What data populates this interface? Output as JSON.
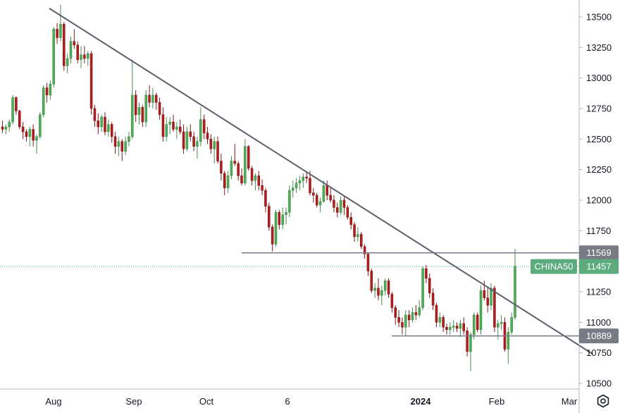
{
  "chart_data": {
    "type": "candlestick",
    "symbol": "CHINA50",
    "last_price": "11457",
    "y_axis": {
      "range": [
        10500,
        13600
      ],
      "ticks": [
        10500,
        10750,
        11000,
        11250,
        11500,
        11750,
        12000,
        12250,
        12500,
        12750,
        13000,
        13250,
        13500
      ]
    },
    "x_axis": {
      "ticks": [
        {
          "label": "Aug",
          "bold": false
        },
        {
          "label": "Sep",
          "bold": false
        },
        {
          "label": "Oct",
          "bold": false
        },
        {
          "label": "6",
          "bold": false
        },
        {
          "label": "2024",
          "bold": true
        },
        {
          "label": "Feb",
          "bold": false
        },
        {
          "label": "Mar",
          "bold": false
        }
      ]
    },
    "levels": [
      {
        "label": "11569",
        "value": 11569
      },
      {
        "label": "10889",
        "value": 10889
      }
    ],
    "trendline": {
      "start": {
        "date": "2023-07-27",
        "value": 13570
      },
      "end": {
        "date": "2024-02-29",
        "value": 10740
      }
    },
    "candles": [
      [
        12600,
        12650,
        12550,
        12580
      ],
      [
        12580,
        12620,
        12540,
        12600
      ],
      [
        12600,
        12660,
        12560,
        12640
      ],
      [
        12640,
        12860,
        12620,
        12840
      ],
      [
        12840,
        12850,
        12700,
        12730
      ],
      [
        12730,
        12740,
        12580,
        12600
      ],
      [
        12600,
        12640,
        12500,
        12560
      ],
      [
        12560,
        12580,
        12480,
        12520
      ],
      [
        12520,
        12600,
        12440,
        12580
      ],
      [
        12580,
        12620,
        12440,
        12490
      ],
      [
        12490,
        12540,
        12380,
        12520
      ],
      [
        12520,
        12720,
        12500,
        12700
      ],
      [
        12700,
        12940,
        12680,
        12920
      ],
      [
        12920,
        12960,
        12800,
        12860
      ],
      [
        12860,
        12980,
        12820,
        12950
      ],
      [
        12950,
        13420,
        12920,
        13400
      ],
      [
        13400,
        13450,
        13280,
        13330
      ],
      [
        13330,
        13600,
        13300,
        13440
      ],
      [
        13440,
        13460,
        13060,
        13100
      ],
      [
        13100,
        13200,
        13040,
        13160
      ],
      [
        13160,
        13340,
        13120,
        13300
      ],
      [
        13300,
        13400,
        13240,
        13270
      ],
      [
        13270,
        13300,
        13120,
        13150
      ],
      [
        13150,
        13260,
        13080,
        13190
      ],
      [
        13190,
        13260,
        13120,
        13160
      ],
      [
        13160,
        13220,
        13100,
        13200
      ],
      [
        13200,
        13220,
        12700,
        12750
      ],
      [
        12750,
        12780,
        12600,
        12650
      ],
      [
        12650,
        12710,
        12540,
        12600
      ],
      [
        12600,
        12700,
        12560,
        12680
      ],
      [
        12680,
        12720,
        12530,
        12560
      ],
      [
        12560,
        12660,
        12520,
        12620
      ],
      [
        12620,
        12640,
        12470,
        12520
      ],
      [
        12520,
        12560,
        12380,
        12440
      ],
      [
        12440,
        12520,
        12360,
        12480
      ],
      [
        12480,
        12500,
        12320,
        12400
      ],
      [
        12400,
        12520,
        12370,
        12480
      ],
      [
        12480,
        12560,
        12440,
        12520
      ],
      [
        12520,
        13150,
        12500,
        12860
      ],
      [
        12860,
        12900,
        12640,
        12700
      ],
      [
        12700,
        12800,
        12620,
        12760
      ],
      [
        12760,
        12780,
        12600,
        12640
      ],
      [
        12640,
        12900,
        12600,
        12860
      ],
      [
        12860,
        12940,
        12760,
        12800
      ],
      [
        12800,
        12920,
        12750,
        12860
      ],
      [
        12860,
        12880,
        12740,
        12800
      ],
      [
        12800,
        12840,
        12660,
        12700
      ],
      [
        12700,
        12760,
        12480,
        12520
      ],
      [
        12520,
        12680,
        12480,
        12620
      ],
      [
        12620,
        12680,
        12540,
        12640
      ],
      [
        12640,
        12700,
        12560,
        12580
      ],
      [
        12580,
        12640,
        12500,
        12600
      ],
      [
        12600,
        12660,
        12540,
        12560
      ],
      [
        12560,
        12620,
        12380,
        12420
      ],
      [
        12420,
        12600,
        12400,
        12560
      ],
      [
        12560,
        12620,
        12480,
        12520
      ],
      [
        12520,
        12560,
        12400,
        12440
      ],
      [
        12440,
        12520,
        12340,
        12480
      ],
      [
        12480,
        12760,
        12440,
        12660
      ],
      [
        12660,
        12700,
        12500,
        12550
      ],
      [
        12550,
        12600,
        12460,
        12500
      ],
      [
        12500,
        12540,
        12380,
        12420
      ],
      [
        12420,
        12520,
        12300,
        12480
      ],
      [
        12480,
        12520,
        12300,
        12320
      ],
      [
        12320,
        12380,
        12160,
        12220
      ],
      [
        12220,
        12240,
        12040,
        12100
      ],
      [
        12100,
        12240,
        12060,
        12200
      ],
      [
        12200,
        12360,
        12170,
        12320
      ],
      [
        12320,
        12460,
        12280,
        12300
      ],
      [
        12300,
        12320,
        12160,
        12200
      ],
      [
        12200,
        12260,
        12120,
        12140
      ],
      [
        12140,
        12500,
        12120,
        12440
      ],
      [
        12440,
        12450,
        12240,
        12260
      ],
      [
        12260,
        12280,
        12120,
        12160
      ],
      [
        12160,
        12220,
        12080,
        12200
      ],
      [
        12200,
        12240,
        12080,
        12120
      ],
      [
        12120,
        12170,
        12040,
        12080
      ],
      [
        12080,
        12100,
        11900,
        11950
      ],
      [
        11950,
        11980,
        11750,
        11780
      ],
      [
        11780,
        11800,
        11580,
        11640
      ],
      [
        11640,
        11920,
        11620,
        11900
      ],
      [
        11900,
        11920,
        11760,
        11800
      ],
      [
        11800,
        11940,
        11760,
        11880
      ],
      [
        11880,
        11940,
        11800,
        11900
      ],
      [
        11900,
        12120,
        11860,
        12080
      ],
      [
        12080,
        12160,
        12020,
        12100
      ],
      [
        12100,
        12180,
        12060,
        12140
      ],
      [
        12140,
        12200,
        12080,
        12160
      ],
      [
        12160,
        12220,
        12100,
        12190
      ],
      [
        12190,
        12230,
        12140,
        12180
      ],
      [
        12180,
        12240,
        12040,
        12060
      ],
      [
        12060,
        12100,
        11980,
        12040
      ],
      [
        12040,
        12060,
        11940,
        11960
      ],
      [
        11960,
        12020,
        11900,
        11990
      ],
      [
        11990,
        12160,
        11980,
        12120
      ],
      [
        12120,
        12160,
        12000,
        12040
      ],
      [
        12040,
        12100,
        11980,
        12000
      ],
      [
        12000,
        12040,
        11900,
        11940
      ],
      [
        11940,
        11980,
        11860,
        11900
      ],
      [
        11900,
        12030,
        11880,
        12000
      ],
      [
        12000,
        12040,
        11880,
        11940
      ],
      [
        11940,
        11960,
        11840,
        11860
      ],
      [
        11860,
        11900,
        11760,
        11800
      ],
      [
        11800,
        11820,
        11660,
        11700
      ],
      [
        11700,
        11780,
        11660,
        11720
      ],
      [
        11720,
        11740,
        11600,
        11620
      ],
      [
        11620,
        11640,
        11520,
        11560
      ],
      [
        11560,
        11570,
        11380,
        11420
      ],
      [
        11420,
        11440,
        11240,
        11260
      ],
      [
        11260,
        11320,
        11200,
        11280
      ],
      [
        11280,
        11360,
        11180,
        11220
      ],
      [
        11220,
        11300,
        11140,
        11260
      ],
      [
        11260,
        11360,
        11220,
        11340
      ],
      [
        11340,
        11360,
        11200,
        11230
      ],
      [
        11230,
        11250,
        11080,
        11120
      ],
      [
        11120,
        11140,
        10980,
        11040
      ],
      [
        11040,
        11100,
        10960,
        11000
      ],
      [
        11000,
        11040,
        10900,
        10960
      ],
      [
        10960,
        11100,
        10889,
        11060
      ],
      [
        11060,
        11100,
        10960,
        11020
      ],
      [
        11020,
        11120,
        11000,
        11080
      ],
      [
        11080,
        11140,
        11020,
        11060
      ],
      [
        11060,
        11180,
        11040,
        11120
      ],
      [
        11120,
        11460,
        11100,
        11440
      ],
      [
        11440,
        11470,
        11320,
        11360
      ],
      [
        11360,
        11400,
        11200,
        11240
      ],
      [
        11240,
        11280,
        11100,
        11140
      ],
      [
        11140,
        11160,
        10960,
        11000
      ],
      [
        11000,
        11080,
        10960,
        11040
      ],
      [
        11040,
        11060,
        10920,
        10960
      ],
      [
        10960,
        10990,
        10900,
        10940
      ],
      [
        10940,
        11000,
        10900,
        10960
      ],
      [
        10960,
        11020,
        10920,
        10970
      ],
      [
        10970,
        11000,
        10920,
        10950
      ],
      [
        10950,
        11020,
        10880,
        10990
      ],
      [
        10990,
        11040,
        10900,
        10930
      ],
      [
        10930,
        10960,
        10720,
        10760
      ],
      [
        10760,
        10920,
        10600,
        10900
      ],
      [
        10900,
        11080,
        10860,
        11060
      ],
      [
        11060,
        11080,
        10920,
        10940
      ],
      [
        10940,
        11300,
        10900,
        11260
      ],
      [
        11260,
        11340,
        11180,
        11200
      ],
      [
        11200,
        11290,
        11080,
        11140
      ],
      [
        11140,
        11320,
        11100,
        11280
      ],
      [
        11280,
        11300,
        10920,
        10960
      ],
      [
        10960,
        11020,
        10860,
        10990
      ],
      [
        10990,
        11060,
        10940,
        11000
      ],
      [
        11000,
        11040,
        10760,
        10780
      ],
      [
        10780,
        10960,
        10660,
        10920
      ],
      [
        10920,
        11080,
        10900,
        11040
      ],
      [
        11040,
        11600,
        11020,
        11460
      ]
    ]
  }
}
